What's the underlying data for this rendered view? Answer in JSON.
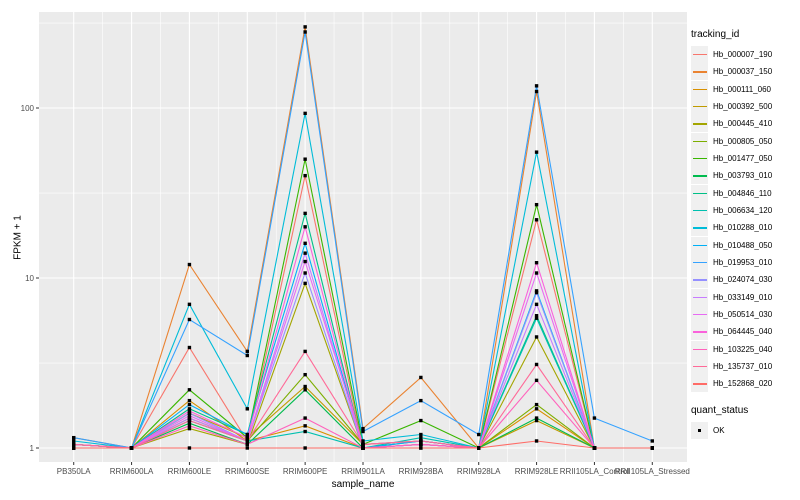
{
  "figure": {
    "background": "#FFFFFF",
    "panel_bg": "#EBEBEB",
    "grid_color": "#FFFFFF",
    "tick_label_color": "#4D4D4D",
    "axis_title_color": "#000000",
    "point_color": "#000000"
  },
  "chart_data": {
    "type": "line",
    "title": "",
    "xlabel": "sample_name",
    "ylabel": "FPKM + 1",
    "y_scale": "log10",
    "y_ticks": [
      1,
      10,
      100
    ],
    "y_minor_ticks": [
      3.16,
      31.6,
      316
    ],
    "ylim": [
      0.85,
      360
    ],
    "grid": true,
    "legend_position": "right",
    "point_marker": "filled-square",
    "categories": [
      "PB350LA",
      "RRIM600LA",
      "RRIM600LE",
      "RRIM600SE",
      "RRIM600PE",
      "RRIM901LA",
      "RRIM928BA",
      "RRIM928LA",
      "RRIM928LE",
      "RRII105LA_Control",
      "RRII105LA_Stressed"
    ],
    "series": [
      {
        "name": "Hb_000007_190",
        "color": "#F8766D",
        "values": [
          1.05,
          1,
          3.9,
          1.1,
          40,
          1,
          1.05,
          1,
          22,
          1,
          1
        ]
      },
      {
        "name": "Hb_000037_150",
        "color": "#EA8331",
        "values": [
          1.15,
          1,
          12,
          3.7,
          300,
          1.3,
          2.6,
          1,
          125,
          1,
          1
        ]
      },
      {
        "name": "Hb_000111_060",
        "color": "#D89000",
        "values": [
          1,
          1,
          1.9,
          1.1,
          1.35,
          1,
          1.05,
          1,
          1.7,
          1,
          1
        ]
      },
      {
        "name": "Hb_000392_500",
        "color": "#C09B00",
        "values": [
          1.05,
          1,
          1.6,
          1.15,
          2.3,
          1.05,
          1.1,
          1,
          1.45,
          1,
          1
        ]
      },
      {
        "name": "Hb_000445_410",
        "color": "#A3A500",
        "values": [
          1,
          1,
          1.3,
          1.05,
          9.3,
          1,
          1,
          1,
          4.5,
          1,
          1
        ]
      },
      {
        "name": "Hb_000805_050",
        "color": "#7CAE00",
        "values": [
          1.05,
          1,
          1.5,
          1.1,
          2.7,
          1.05,
          1.1,
          1,
          1.8,
          1,
          1
        ]
      },
      {
        "name": "Hb_001477_050",
        "color": "#39B600",
        "values": [
          1.05,
          1,
          2.2,
          1.15,
          50,
          1.05,
          1.45,
          1,
          27,
          1,
          1
        ]
      },
      {
        "name": "Hb_003793_010",
        "color": "#00BB4E",
        "values": [
          1,
          1,
          1.4,
          1.05,
          2.2,
          1,
          1.05,
          1,
          1.5,
          1,
          1
        ]
      },
      {
        "name": "Hb_004846_110",
        "color": "#00C087",
        "values": [
          1.05,
          1,
          1.7,
          1.2,
          24,
          1,
          1.1,
          1,
          6,
          1,
          1
        ]
      },
      {
        "name": "Hb_006634_120",
        "color": "#00C0AF",
        "values": [
          1,
          1,
          1.45,
          1.1,
          1.25,
          1,
          1.15,
          1,
          5.8,
          1,
          1
        ]
      },
      {
        "name": "Hb_010288_010",
        "color": "#00BCD8",
        "values": [
          1.1,
          1,
          7,
          1.7,
          93,
          1.1,
          1.2,
          1,
          55,
          1,
          1
        ]
      },
      {
        "name": "Hb_010488_050",
        "color": "#00B0F6",
        "values": [
          1.05,
          1,
          1.8,
          1.2,
          16,
          1,
          1.1,
          1,
          8.4,
          1,
          1
        ]
      },
      {
        "name": "Hb_019953_010",
        "color": "#35A2FF",
        "values": [
          1.15,
          1,
          5.7,
          3.5,
          280,
          1.25,
          1.9,
          1.2,
          135,
          1.5,
          1.1
        ]
      },
      {
        "name": "Hb_024074_030",
        "color": "#9590FF",
        "values": [
          1,
          1,
          1.6,
          1.1,
          10.7,
          1,
          1.05,
          1,
          8.2,
          1,
          1
        ]
      },
      {
        "name": "Hb_033149_010",
        "color": "#C77CFF",
        "values": [
          1.05,
          1,
          1.5,
          1.1,
          14,
          1,
          1.05,
          1,
          7,
          1,
          1
        ]
      },
      {
        "name": "Hb_050514_030",
        "color": "#E76BF3",
        "values": [
          1,
          1,
          1.55,
          1.1,
          12.5,
          1.05,
          1.1,
          1,
          10.7,
          1,
          1
        ]
      },
      {
        "name": "Hb_064445_040",
        "color": "#FA62DB",
        "values": [
          1.05,
          1,
          1.65,
          1.15,
          20,
          1,
          1.05,
          1,
          12.3,
          1,
          1
        ]
      },
      {
        "name": "Hb_103225_040",
        "color": "#FF62BC",
        "values": [
          1,
          1,
          1.35,
          1.05,
          1.5,
          1,
          1.05,
          1,
          2.5,
          1,
          1
        ]
      },
      {
        "name": "Hb_135737_010",
        "color": "#FF6A98",
        "values": [
          1.05,
          1,
          1.45,
          1.1,
          3.7,
          1.05,
          1.1,
          1,
          3.1,
          1,
          1
        ]
      },
      {
        "name": "Hb_152868_020",
        "color": "#FF6C67",
        "values": [
          1,
          1,
          1,
          1,
          1,
          1,
          1,
          1,
          1.1,
          1,
          1
        ]
      }
    ]
  },
  "legend": {
    "color_legend_title": "tracking_id",
    "shape_legend_title": "quant_status",
    "shape_items": [
      "OK"
    ],
    "key_bg": "#F0F0F0"
  }
}
